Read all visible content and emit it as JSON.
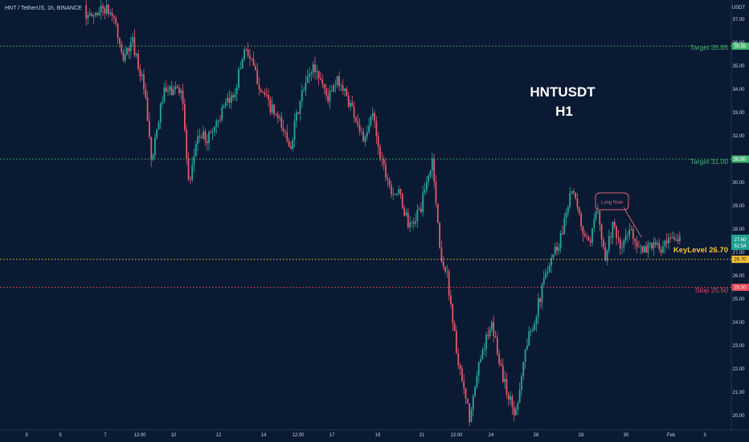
{
  "header": {
    "symbol_line": "HNT / TetherUS, 1h, BINANCE"
  },
  "annotation": {
    "title": "HNTUSDT",
    "subtitle": "H1",
    "note": "Long Now"
  },
  "chart_data": {
    "type": "candlestick",
    "currency_label": "USDT",
    "y_ticks": [
      "20.00",
      "21.00",
      "22.00",
      "23.00",
      "24.00",
      "25.00",
      "26.00",
      "27.00",
      "28.00",
      "29.00",
      "30.00",
      "31.00",
      "32.00",
      "33.00",
      "34.00",
      "35.00",
      "36.00",
      "37.00"
    ],
    "ylim": [
      19.6,
      37.6
    ],
    "x_ticks": [
      "3",
      "5",
      "7",
      "12:00",
      "10",
      "12",
      "14",
      "12:00",
      "17",
      "19",
      "21",
      "12:00",
      "24",
      "26",
      "28",
      "30",
      "Feb",
      "3"
    ],
    "levels": [
      {
        "label": "Target 35.85",
        "value": 35.85,
        "tag": "35.85",
        "color": "#3fb56b",
        "style": "dotted"
      },
      {
        "label": "Target 31.00",
        "value": 31.0,
        "tag": "31.00",
        "color": "#3fb56b",
        "style": "dotted"
      },
      {
        "label": "KeyLevel 26.70",
        "value": 26.7,
        "tag": "26.70",
        "color": "#f5c232",
        "style": "dotted"
      },
      {
        "label": "Stop 25.50",
        "value": 25.5,
        "tag": "25.50",
        "color": "#e5495a",
        "style": "dotted"
      }
    ],
    "last_price": {
      "value": "27.60",
      "countdown": "51:54",
      "color": "#1fa08f"
    },
    "path": [
      [
        0.115,
        37.6
      ],
      [
        0.12,
        37.0
      ],
      [
        0.14,
        37.5
      ],
      [
        0.155,
        37.1
      ],
      [
        0.165,
        35.3
      ],
      [
        0.18,
        36.0
      ],
      [
        0.195,
        34.0
      ],
      [
        0.205,
        30.8
      ],
      [
        0.22,
        33.8
      ],
      [
        0.245,
        34.1
      ],
      [
        0.255,
        29.5
      ],
      [
        0.265,
        32.0
      ],
      [
        0.28,
        31.9
      ],
      [
        0.295,
        32.8
      ],
      [
        0.315,
        33.8
      ],
      [
        0.33,
        35.9
      ],
      [
        0.345,
        34.5
      ],
      [
        0.36,
        33.4
      ],
      [
        0.375,
        32.6
      ],
      [
        0.39,
        31.6
      ],
      [
        0.405,
        33.7
      ],
      [
        0.42,
        35.0
      ],
      [
        0.43,
        34.5
      ],
      [
        0.44,
        33.6
      ],
      [
        0.455,
        34.4
      ],
      [
        0.475,
        33.0
      ],
      [
        0.49,
        31.7
      ],
      [
        0.5,
        33.0
      ],
      [
        0.51,
        31.2
      ],
      [
        0.525,
        29.7
      ],
      [
        0.535,
        29.5
      ],
      [
        0.55,
        28.0
      ],
      [
        0.565,
        29.0
      ],
      [
        0.58,
        31.0
      ],
      [
        0.59,
        27.0
      ],
      [
        0.6,
        25.9
      ],
      [
        0.615,
        22.0
      ],
      [
        0.63,
        19.8
      ],
      [
        0.645,
        22.8
      ],
      [
        0.66,
        23.8
      ],
      [
        0.675,
        21.5
      ],
      [
        0.69,
        20.0
      ],
      [
        0.705,
        23.0
      ],
      [
        0.72,
        24.6
      ],
      [
        0.735,
        26.6
      ],
      [
        0.75,
        27.5
      ],
      [
        0.765,
        29.8
      ],
      [
        0.78,
        28.0
      ],
      [
        0.79,
        27.1
      ],
      [
        0.8,
        29.2
      ],
      [
        0.81,
        26.7
      ],
      [
        0.82,
        28.2
      ],
      [
        0.83,
        27.1
      ],
      [
        0.845,
        28.0
      ],
      [
        0.86,
        26.9
      ],
      [
        0.87,
        27.4
      ],
      [
        0.885,
        27.1
      ],
      [
        0.9,
        27.5
      ],
      [
        0.91,
        27.6
      ]
    ]
  }
}
